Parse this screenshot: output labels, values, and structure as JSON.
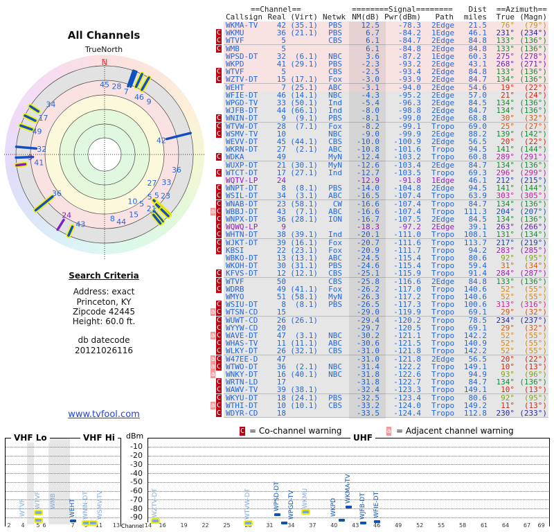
{
  "left": {
    "title": "All Channels",
    "north_label": "TrueNorth",
    "north_mark": "N",
    "criteria_title": "Search Criteria",
    "address": "Address: exact",
    "city": "Princeton, KY",
    "zipcode": "Zipcode 42445",
    "height": "Height: 60.0 ft.",
    "datecode_label": "db datecode",
    "datecode": "20121026116",
    "link": "www.tvfool.com"
  },
  "table": {
    "group_channel": "==Channel==",
    "group_signal": "========Signal========",
    "group_dist": "Dist",
    "group_azimuth": "==Azimuth==",
    "headers": {
      "callsign": "Callsign",
      "real": "Real",
      "virt": "(Virt)",
      "netwk": "Netwk",
      "nm": "NM(dB)",
      "pwr": "Pwr(dBm)",
      "path": "Path",
      "dist": "miles",
      "true": "True",
      "magn": "(Magn)"
    },
    "colors": {
      "text": "#2266dd",
      "lp": "#9020c0",
      "cochannel": "#c00010",
      "adjacent": "#f29a9a"
    },
    "rows": [
      [
        "",
        "WKMA-TV",
        "42",
        "(35.1)",
        "PBS",
        "12.5",
        "-78.3",
        "2Edge",
        "21.5",
        "76°",
        "(79°)",
        "#b89a28"
      ],
      [
        "C",
        "WKMU",
        "36",
        "(21.1)",
        "PBS",
        "6.7",
        "-84.2",
        "1Edge",
        "46.1",
        "231°",
        "(234°)",
        "#2828a0"
      ],
      [
        "C",
        "WTVF",
        "5",
        "",
        "CBS",
        "6.1",
        "-84.7",
        "2Edge",
        "84.8",
        "133°",
        "(136°)",
        "#208838"
      ],
      [
        "C",
        "WMB",
        "5",
        "",
        "",
        "6.1",
        "-84.8",
        "2Edge",
        "84.8",
        "133°",
        "(136°)",
        "#208838"
      ],
      [
        "",
        "WPSD-DT",
        "32",
        "(6.1)",
        "NBC",
        "3.6",
        "-87.2",
        "1Edge",
        "60.3",
        "275°",
        "(278°)",
        "#8020c0"
      ],
      [
        "",
        "WKPD",
        "41",
        "(29.1)",
        "PBS",
        "-2.3",
        "-93.2",
        "2Edge",
        "43.1",
        "268°",
        "(271°)",
        "#6a20b0"
      ],
      [
        "C",
        "WTVF",
        "5",
        "",
        "CBS",
        "-2.5",
        "-93.4",
        "2Edge",
        "84.8",
        "133°",
        "(136°)",
        "#208838"
      ],
      [
        "C",
        "WZTV-DT",
        "15",
        "(17.1)",
        "Fox",
        "-3.0",
        "-93.9",
        "2Edge",
        "84.7",
        "134°",
        "(136°)",
        "#208838"
      ],
      [
        "",
        "WEHT",
        "7",
        "(25.1)",
        "ABC",
        "-3.1",
        "-94.0",
        "2Edge",
        "54.6",
        "19°",
        "(22°)",
        "#d02810"
      ],
      [
        "",
        "WFIE-DT",
        "46",
        "(14.1)",
        "NBC",
        "-4.3",
        "-95.2",
        "2Edge",
        "57.0",
        "21°",
        "(24°)",
        "#d02810"
      ],
      [
        "",
        "WPGD-TV",
        "33",
        "(50.1)",
        "Ind",
        "-5.4",
        "-96.3",
        "2Edge",
        "84.5",
        "134°",
        "(136°)",
        "#208838"
      ],
      [
        "",
        "WJFB-DT",
        "44",
        "(66.1)",
        "Ind",
        "-8.0",
        "-98.8",
        "2Edge",
        "84.7",
        "134°",
        "(136°)",
        "#208838"
      ],
      [
        "C",
        "WNIN-DT",
        "9",
        "(9.1)",
        "PBS",
        "-8.1",
        "-99.0",
        "2Edge",
        "68.8",
        "30°",
        "(32°)",
        "#d05818"
      ],
      [
        "C",
        "WTVW-DT",
        "28",
        "(7.1)",
        "Fox",
        "-8.2",
        "-99.1",
        "Tropo",
        "69.0",
        "25°",
        "(27°)",
        "#d05818"
      ],
      [
        "C",
        "WSMV-TV",
        "10",
        "",
        "NBC",
        "-9.0",
        "-99.9",
        "2Edge",
        "88.2",
        "139°",
        "(142°)",
        "#208838"
      ],
      [
        "",
        "WEVV-DT",
        "45",
        "(44.1)",
        "CBS",
        "-10.0",
        "-100.9",
        "2Edge",
        "56.5",
        "20°",
        "(22°)",
        "#d02810"
      ],
      [
        "",
        "WKRN-DT",
        "27",
        "(2.1)",
        "ABC",
        "-10.8",
        "-101.6",
        "Tropo",
        "94.5",
        "141°",
        "(144°)",
        "#208838"
      ],
      [
        "C",
        "WDKA",
        "49",
        "",
        "MyN",
        "-12.4",
        "-103.2",
        "Tropo",
        "60.8",
        "289°",
        "(291°)",
        "#b020b0"
      ],
      [
        "",
        "WUXP-DT",
        "21",
        "(30.1)",
        "MyN",
        "-12.6",
        "-103.4",
        "2Edge",
        "84.7",
        "134°",
        "(136°)",
        "#208838"
      ],
      [
        "C",
        "WTCT-DT",
        "17",
        "(27.1)",
        "Ind",
        "-12.7",
        "-103.5",
        "Tropo",
        "69.3",
        "296°",
        "(299°)",
        "#c020a0"
      ],
      [
        "",
        "WQTV-LP",
        "24",
        "",
        "",
        "-12.9",
        "-91.8",
        "1Edge",
        "46.1",
        "212°",
        "(215°)",
        "#2040a0",
        "lp"
      ],
      [
        "C",
        "WNPT-DT",
        "8",
        "(8.1)",
        "PBS",
        "-14.0",
        "-104.8",
        "2Edge",
        "94.5",
        "141°",
        "(144°)",
        "#208838"
      ],
      [
        "C",
        "WSIL-DT",
        "34",
        "(3.1)",
        "ABC",
        "-16.5",
        "-107.4",
        "Tropo",
        "63.9",
        "303°",
        "(305°)",
        "#c020a0"
      ],
      [
        "C",
        "WNAB-DT",
        "23",
        "(58.1)",
        "CW",
        "-16.6",
        "-107.4",
        "Tropo",
        "84.7",
        "134°",
        "(136°)",
        "#208838"
      ],
      [
        "aC",
        "WBBJ-DT",
        "43",
        "(7.1)",
        "ABC",
        "-16.6",
        "-107.4",
        "Tropo",
        "111.3",
        "204°",
        "(207°)",
        "#2050b0"
      ],
      [
        "C",
        "WNPX-DT",
        "36",
        "(28.1)",
        "ION",
        "-16.7",
        "-107.5",
        "2Edge",
        "84.5",
        "134°",
        "(136°)",
        "#208838"
      ],
      [
        "C",
        "WQWQ-LP",
        "9",
        "",
        "",
        "-18.3",
        "-97.2",
        "2Edge",
        "39.1",
        "263°",
        "(266°)",
        "#6020b0",
        "lp"
      ],
      [
        "C",
        "WHTN-DT",
        "38",
        "(39.1)",
        "Ind",
        "-20.1",
        "-111.0",
        "Tropo",
        "108.1",
        "131°",
        "(134°)",
        "#208838"
      ],
      [
        "C",
        "WJKT-DT",
        "39",
        "(16.1)",
        "Fox",
        "-20.7",
        "-111.6",
        "Tropo",
        "113.7",
        "217°",
        "(219°)",
        "#2040a0"
      ],
      [
        "C",
        "KBSI",
        "22",
        "(23.1)",
        "Fox",
        "-20.9",
        "-111.7",
        "Tropo",
        "94.2",
        "283°",
        "(285°)",
        "#a020b0"
      ],
      [
        "",
        "WBKO-DT",
        "13",
        "(13.1)",
        "ABC",
        "-24.5",
        "-115.4",
        "Tropo",
        "80.6",
        "92°",
        "(95°)",
        "#80a020"
      ],
      [
        "",
        "WKOH-DT",
        "30",
        "(31.1)",
        "PBS",
        "-24.6",
        "-115.4",
        "Tropo",
        "59.4",
        "31°",
        "(34°)",
        "#d06010"
      ],
      [
        "C",
        "KFVS-DT",
        "12",
        "(12.1)",
        "CBS",
        "-25.1",
        "-115.9",
        "Tropo",
        "91.4",
        "284°",
        "(287°)",
        "#a020b0"
      ],
      [
        "C",
        "WTVF",
        "50",
        "",
        "CBS",
        "-25.8",
        "-116.6",
        "2Edge",
        "84.8",
        "133°",
        "(136°)",
        "#208838"
      ],
      [
        "C",
        "WDRB",
        "49",
        "(41.1)",
        "Fox",
        "-26.2",
        "-117.0",
        "Tropo",
        "140.6",
        "52°",
        "(55°)",
        "#d08820"
      ],
      [
        "",
        "WMYO",
        "51",
        "(58.1)",
        "MyN",
        "-26.3",
        "-117.2",
        "Tropo",
        "140.6",
        "52°",
        "(55°)",
        "#d08820"
      ],
      [
        "C",
        "WSIU-DT",
        "8",
        "(8.1)",
        "PBS",
        "-26.5",
        "-117.3",
        "Tropo",
        "100.6",
        "313°",
        "(316°)",
        "#d020a0"
      ],
      [
        "aC",
        "WTSN-CD",
        "15",
        "",
        "",
        "-29.0",
        "-119.9",
        "Tropo",
        "69.1",
        "29°",
        "(32°)",
        "#d05818"
      ],
      [
        "C",
        "WUWT-CD",
        "26",
        "(26.1)",
        "",
        "-29.4",
        "-120.2",
        "Tropo",
        "78.5",
        "234°",
        "(237°)",
        "#2828a0"
      ],
      [
        "C",
        "WYYW-CD",
        "20",
        "",
        "",
        "-29.7",
        "-120.5",
        "Tropo",
        "69.1",
        "29°",
        "(32°)",
        "#d05818"
      ],
      [
        "aC",
        "WAVE-DT",
        "47",
        "(3.1)",
        "NBC",
        "-30.2",
        "-121.1",
        "Tropo",
        "142.2",
        "52°",
        "(55°)",
        "#d08820"
      ],
      [
        "C",
        "WHAS-TV",
        "11",
        "(11.1)",
        "ABC",
        "-30.6",
        "-121.5",
        "Tropo",
        "140.9",
        "52°",
        "(55°)",
        "#d08820"
      ],
      [
        "C",
        "WLKY-DT",
        "26",
        "(32.1)",
        "CBS",
        "-31.0",
        "-121.8",
        "Tropo",
        "142.2",
        "52°",
        "(55°)",
        "#d08820"
      ],
      [
        "aC",
        "W47EE-D",
        "47",
        "",
        "",
        "-31.0",
        "-121.8",
        "2Edge",
        "56.5",
        "20°",
        "(22°)",
        "#d02810"
      ],
      [
        "aC",
        "WTWO-DT",
        "36",
        "(2.1)",
        "NBC",
        "-31.4",
        "-122.2",
        "Tropo",
        "149.1",
        "10°",
        "(13°)",
        "#d02810"
      ],
      [
        "a",
        "WNKY-DT",
        "16",
        "(40.1)",
        "NBC",
        "-31.8",
        "-122.6",
        "Tropo",
        "94.9",
        "93°",
        "(96°)",
        "#80a020"
      ],
      [
        "C",
        "WRTN-LD",
        "17",
        "",
        "",
        "-31.8",
        "-122.7",
        "Tropo",
        "84.7",
        "134°",
        "(136°)",
        "#208838"
      ],
      [
        "C",
        "WAWV-TV",
        "39",
        "(38.1)",
        "",
        "-32.4",
        "-123.3",
        "Tropo",
        "149.1",
        "10°",
        "(13°)",
        "#d02810"
      ],
      [
        "C",
        "WKYU-DT",
        "18",
        "(24.1)",
        "PBS",
        "-32.5",
        "-123.4",
        "Tropo",
        "80.6",
        "92°",
        "(95°)",
        "#80a020"
      ],
      [
        "aC",
        "WTHI-DT",
        "10",
        "(10.1)",
        "CBS",
        "-33.2",
        "-124.0",
        "Tropo",
        "149.2",
        "11°",
        "(13°)",
        "#d02810"
      ],
      [
        "C",
        "WDYR-CD",
        "18",
        "",
        "",
        "-33.5",
        "-124.4",
        "Tropo",
        "112.8",
        "230°",
        "(233°)",
        "#2828a0"
      ]
    ]
  },
  "legend": {
    "c_mark": "C",
    "c_text": "= Co-channel warning",
    "a_mark": "a",
    "a_text": "= Adjacent channel warning"
  },
  "spectrum": {
    "vhf_lo": "VHF Lo",
    "vhf_hi": "VHF Hi",
    "uhf": "UHF",
    "unit": "dBm",
    "axis_label": "Channel",
    "y_ticks": [
      "-10",
      "-20",
      "-30",
      "-40",
      "-50",
      "-60",
      "-70",
      "-80",
      "-90"
    ],
    "vhf_ticks": [
      "2",
      "4",
      "5",
      "6",
      "7",
      "9",
      "11",
      "13"
    ],
    "uhf_ticks": [
      "14",
      "16",
      "19",
      "22",
      "25",
      "28",
      "31",
      "34",
      "37",
      "40",
      "43",
      "46",
      "49",
      "52",
      "55",
      "58",
      "61",
      "64",
      "67",
      "69"
    ],
    "plotted_rows": 15,
    "bar_dark": "#1050b0",
    "bar_light": "#80a8e0",
    "highlight": "#f0f000"
  },
  "polar": {
    "plotted_rows": 27
  }
}
